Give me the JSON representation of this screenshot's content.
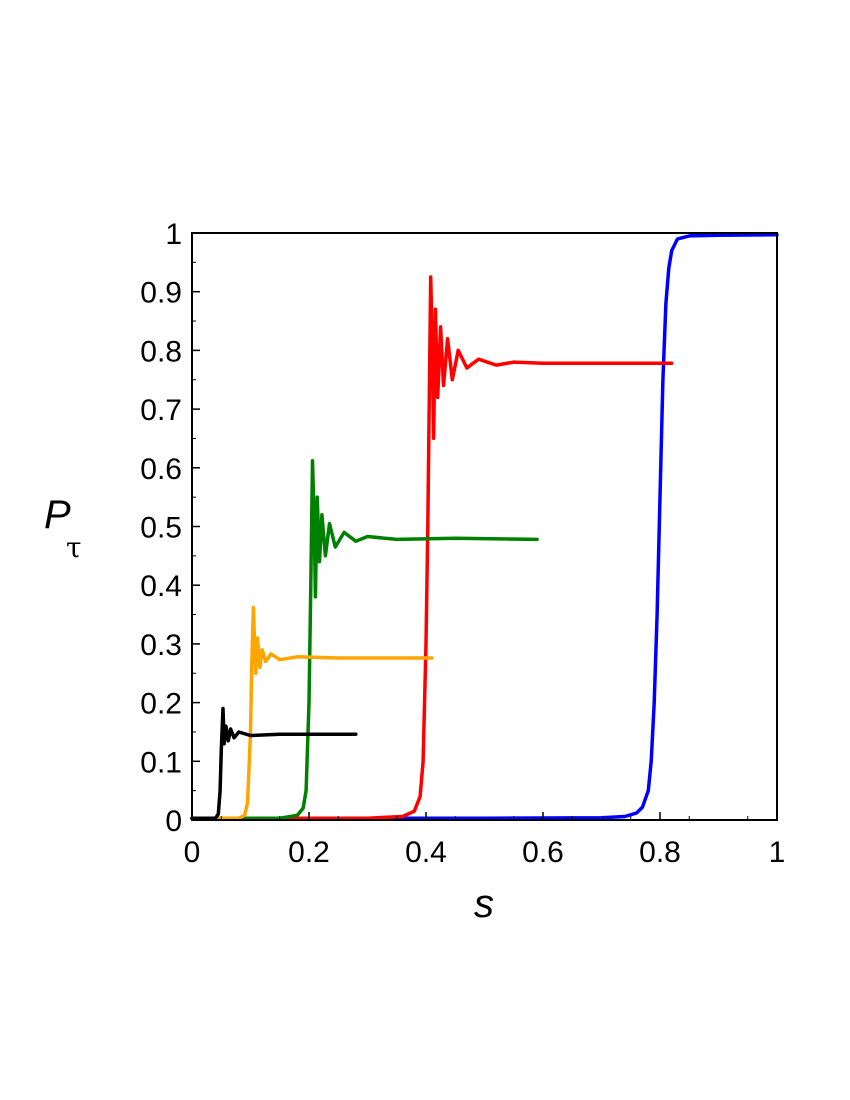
{
  "chart_data": {
    "type": "line",
    "title": "",
    "xlabel": "s",
    "ylabel_main": "P",
    "ylabel_sub": "τ",
    "xlim": [
      0,
      1
    ],
    "ylim": [
      0,
      1
    ],
    "xticks": [
      0,
      0.2,
      0.4,
      0.6,
      0.8,
      1
    ],
    "xtick_labels": [
      "0",
      "0.2",
      "0.4",
      "0.6",
      "0.8",
      "1"
    ],
    "yticks": [
      0,
      0.1,
      0.2,
      0.3,
      0.4,
      0.5,
      0.6,
      0.7,
      0.8,
      0.9,
      1
    ],
    "ytick_labels": [
      "0",
      "0.1",
      "0.2",
      "0.3",
      "0.4",
      "0.5",
      "0.6",
      "0.7",
      "0.8",
      "0.9",
      "1"
    ],
    "grid": false,
    "legend": "none",
    "series": [
      {
        "color": "#0000ff",
        "points": [
          [
            0,
            0.003
          ],
          [
            0.5,
            0.003
          ],
          [
            0.7,
            0.004
          ],
          [
            0.74,
            0.006
          ],
          [
            0.76,
            0.012
          ],
          [
            0.77,
            0.022
          ],
          [
            0.78,
            0.05
          ],
          [
            0.785,
            0.1
          ],
          [
            0.79,
            0.2
          ],
          [
            0.795,
            0.35
          ],
          [
            0.8,
            0.55
          ],
          [
            0.805,
            0.75
          ],
          [
            0.81,
            0.88
          ],
          [
            0.815,
            0.94
          ],
          [
            0.82,
            0.97
          ],
          [
            0.83,
            0.99
          ],
          [
            0.85,
            0.995
          ],
          [
            0.9,
            0.996
          ],
          [
            1.0,
            0.997
          ]
        ]
      },
      {
        "color": "#ff0000",
        "points": [
          [
            0,
            0.003
          ],
          [
            0.3,
            0.003
          ],
          [
            0.36,
            0.006
          ],
          [
            0.38,
            0.015
          ],
          [
            0.39,
            0.04
          ],
          [
            0.395,
            0.1
          ],
          [
            0.4,
            0.3
          ],
          [
            0.403,
            0.5
          ],
          [
            0.406,
            0.75
          ],
          [
            0.408,
            0.925
          ],
          [
            0.411,
            0.8
          ],
          [
            0.413,
            0.65
          ],
          [
            0.416,
            0.87
          ],
          [
            0.42,
            0.72
          ],
          [
            0.425,
            0.84
          ],
          [
            0.43,
            0.74
          ],
          [
            0.437,
            0.82
          ],
          [
            0.445,
            0.75
          ],
          [
            0.455,
            0.8
          ],
          [
            0.47,
            0.77
          ],
          [
            0.49,
            0.785
          ],
          [
            0.52,
            0.775
          ],
          [
            0.55,
            0.78
          ],
          [
            0.6,
            0.778
          ],
          [
            0.7,
            0.778
          ],
          [
            0.82,
            0.778
          ]
        ]
      },
      {
        "color": "#008000",
        "points": [
          [
            0,
            0.003
          ],
          [
            0.15,
            0.003
          ],
          [
            0.18,
            0.008
          ],
          [
            0.19,
            0.02
          ],
          [
            0.195,
            0.05
          ],
          [
            0.2,
            0.2
          ],
          [
            0.203,
            0.4
          ],
          [
            0.206,
            0.612
          ],
          [
            0.209,
            0.5
          ],
          [
            0.211,
            0.38
          ],
          [
            0.214,
            0.55
          ],
          [
            0.218,
            0.44
          ],
          [
            0.222,
            0.52
          ],
          [
            0.228,
            0.45
          ],
          [
            0.235,
            0.505
          ],
          [
            0.245,
            0.465
          ],
          [
            0.26,
            0.49
          ],
          [
            0.28,
            0.475
          ],
          [
            0.3,
            0.483
          ],
          [
            0.35,
            0.478
          ],
          [
            0.45,
            0.48
          ],
          [
            0.59,
            0.478
          ]
        ]
      },
      {
        "color": "#ffa500",
        "points": [
          [
            0,
            0.003
          ],
          [
            0.08,
            0.003
          ],
          [
            0.09,
            0.008
          ],
          [
            0.095,
            0.03
          ],
          [
            0.1,
            0.15
          ],
          [
            0.102,
            0.26
          ],
          [
            0.105,
            0.362
          ],
          [
            0.107,
            0.3
          ],
          [
            0.109,
            0.25
          ],
          [
            0.112,
            0.31
          ],
          [
            0.116,
            0.26
          ],
          [
            0.12,
            0.29
          ],
          [
            0.126,
            0.27
          ],
          [
            0.135,
            0.283
          ],
          [
            0.15,
            0.273
          ],
          [
            0.18,
            0.278
          ],
          [
            0.25,
            0.276
          ],
          [
            0.41,
            0.276
          ]
        ]
      },
      {
        "color": "#000000",
        "points": [
          [
            0,
            0.003
          ],
          [
            0.04,
            0.003
          ],
          [
            0.045,
            0.01
          ],
          [
            0.048,
            0.05
          ],
          [
            0.05,
            0.12
          ],
          [
            0.053,
            0.19
          ],
          [
            0.055,
            0.13
          ],
          [
            0.058,
            0.16
          ],
          [
            0.062,
            0.135
          ],
          [
            0.066,
            0.155
          ],
          [
            0.072,
            0.14
          ],
          [
            0.08,
            0.15
          ],
          [
            0.1,
            0.144
          ],
          [
            0.15,
            0.146
          ],
          [
            0.28,
            0.146
          ]
        ]
      }
    ]
  }
}
